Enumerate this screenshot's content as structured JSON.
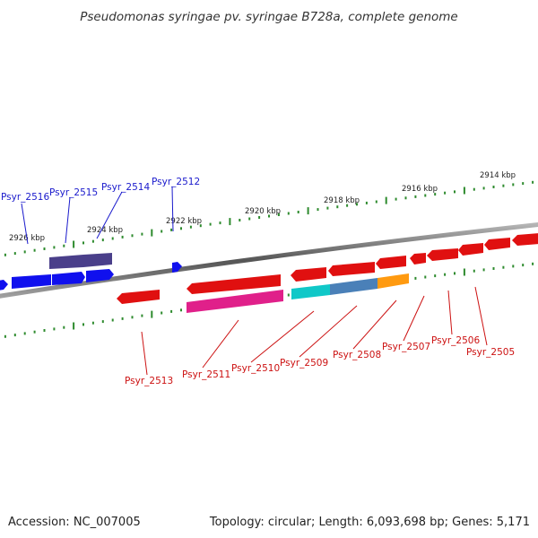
{
  "title": "Pseudomonas syringae pv. syringae B728a, complete genome",
  "accession": "Accession: NC_007005",
  "topology": "Topology: circular; Length: 6,093,698 bp; Genes: 5,171",
  "colors": {
    "backbone": "#777777",
    "tick": "#2e8b2e",
    "gene_blue": "#1010ee",
    "gene_dark_blue": "#4a3f8a",
    "gene_red": "#e01010",
    "gene_pink": "#e0208a",
    "gene_cyan": "#10c8c8",
    "gene_steel": "#4a80b8",
    "gene_orange": "#ff9a10",
    "label_forward": "#1a1acc",
    "label_reverse": "#cc1111"
  },
  "scale_labels": [
    "2926 kbp",
    "2924 kbp",
    "2922 kbp",
    "2920 kbp",
    "2918 kbp",
    "2916 kbp",
    "2914 kbp"
  ],
  "genes": {
    "forward": [
      "Psyr_2516",
      "Psyr_2515",
      "Psyr_2514",
      "Psyr_2512"
    ],
    "reverse": [
      "Psyr_2513",
      "Psyr_2511",
      "Psyr_2510",
      "Psyr_2509",
      "Psyr_2508",
      "Psyr_2507",
      "Psyr_2506",
      "Psyr_2505"
    ]
  }
}
